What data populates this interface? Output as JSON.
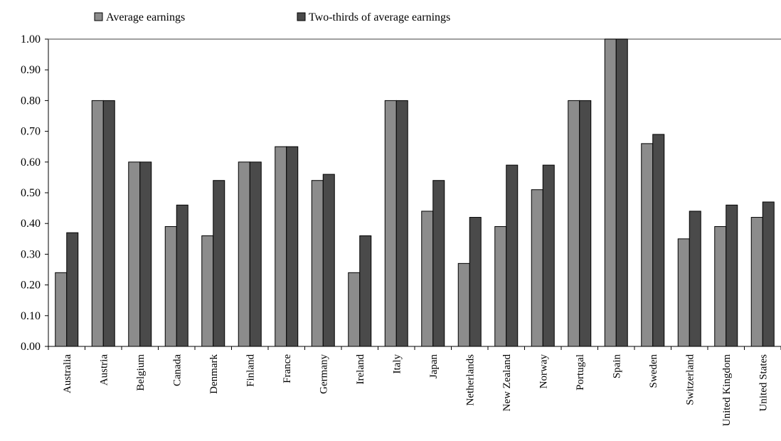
{
  "chart_data": {
    "type": "bar",
    "title": "",
    "xlabel": "",
    "ylabel": "",
    "ylim": [
      0,
      1.0
    ],
    "yticks": [
      "0.00",
      "0.10",
      "0.20",
      "0.30",
      "0.40",
      "0.50",
      "0.60",
      "0.70",
      "0.80",
      "0.90",
      "1.00"
    ],
    "grid": false,
    "legend_position": "top",
    "categories": [
      "Australia",
      "Austria",
      "Belgium",
      "Canada",
      "Denmark",
      "Finland",
      "France",
      "Germany",
      "Ireland",
      "Italy",
      "Japan",
      "Netherlands",
      "New Zealand",
      "Norway",
      "Portugal",
      "Spain",
      "Sweden",
      "Switzerland",
      "United Kingdom",
      "United States"
    ],
    "series": [
      {
        "name": "Average earnings",
        "color": "#8c8c8c",
        "values": [
          0.24,
          0.8,
          0.6,
          0.39,
          0.36,
          0.6,
          0.65,
          0.54,
          0.24,
          0.8,
          0.44,
          0.27,
          0.39,
          0.51,
          0.8,
          1.0,
          0.66,
          0.35,
          0.39,
          0.42
        ]
      },
      {
        "name": "Two-thirds of average earnings",
        "color": "#4a4a4a",
        "values": [
          0.37,
          0.8,
          0.6,
          0.46,
          0.54,
          0.6,
          0.65,
          0.56,
          0.36,
          0.8,
          0.54,
          0.42,
          0.59,
          0.59,
          0.8,
          1.0,
          0.69,
          0.44,
          0.46,
          0.47
        ]
      }
    ]
  }
}
